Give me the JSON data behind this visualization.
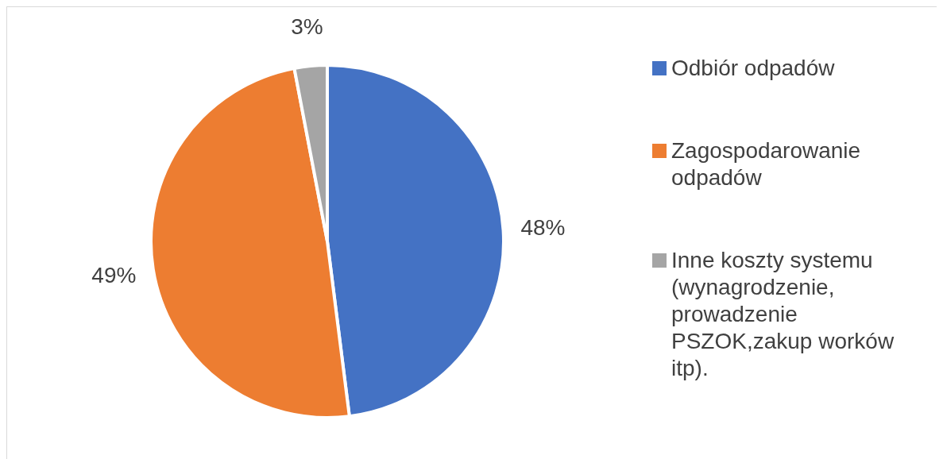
{
  "chart_data": {
    "type": "pie",
    "categories": [
      "Odbiór odpadów",
      "Zagospodarowanie odpadów",
      "Inne koszty systemu (wynagrodzenie, prowadzenie PSZOK,zakup worków itp)."
    ],
    "values": [
      48,
      49,
      3
    ],
    "colors": [
      "#4472c4",
      "#ed7d31",
      "#a5a5a5"
    ],
    "value_labels": [
      "48%",
      "49%",
      "3%"
    ],
    "legend": "right"
  }
}
